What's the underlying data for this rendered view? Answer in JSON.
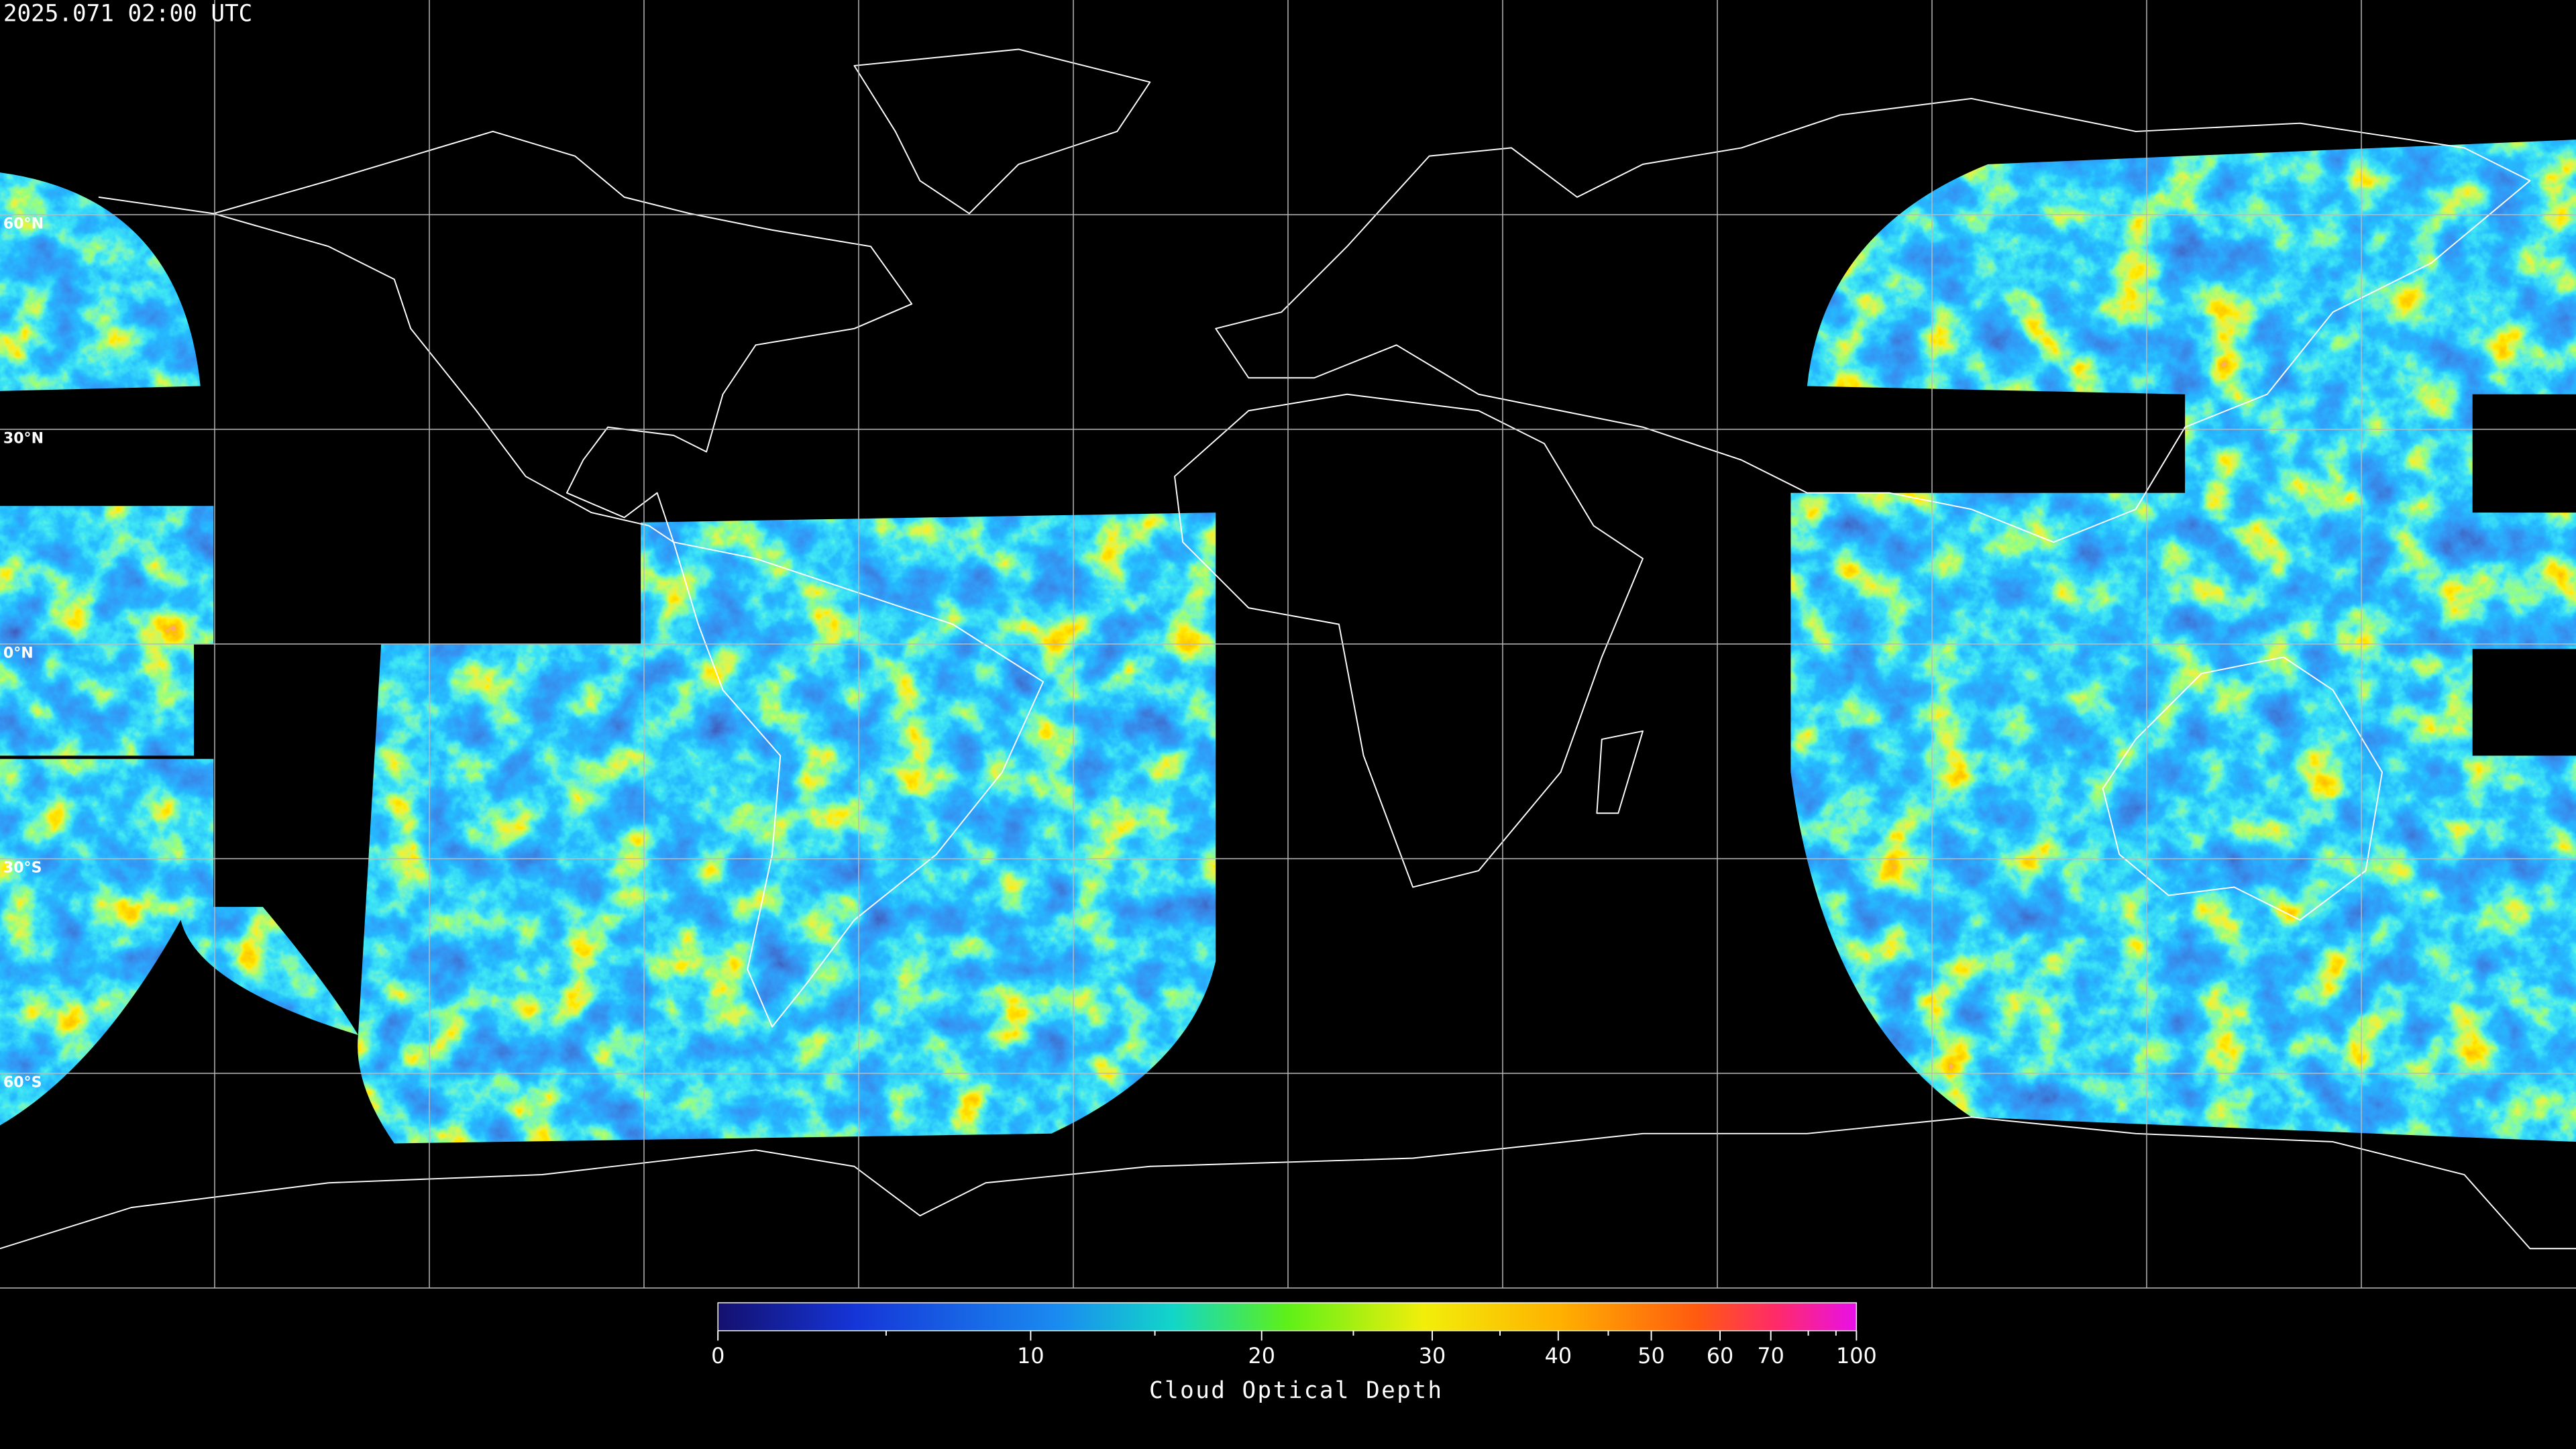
{
  "timestamp": "2025.071 02:00 UTC",
  "map": {
    "lat_labels": [
      "60°N",
      "30°N",
      "0°N",
      "30°S",
      "60°S"
    ]
  },
  "colorbar": {
    "label": "Cloud Optical Depth",
    "lim": [
      0,
      100
    ],
    "ticks": [
      0,
      10,
      20,
      30,
      40,
      50,
      60,
      70,
      100
    ],
    "minor_ticks": [
      5,
      15,
      25,
      35,
      45,
      80,
      90
    ]
  }
}
